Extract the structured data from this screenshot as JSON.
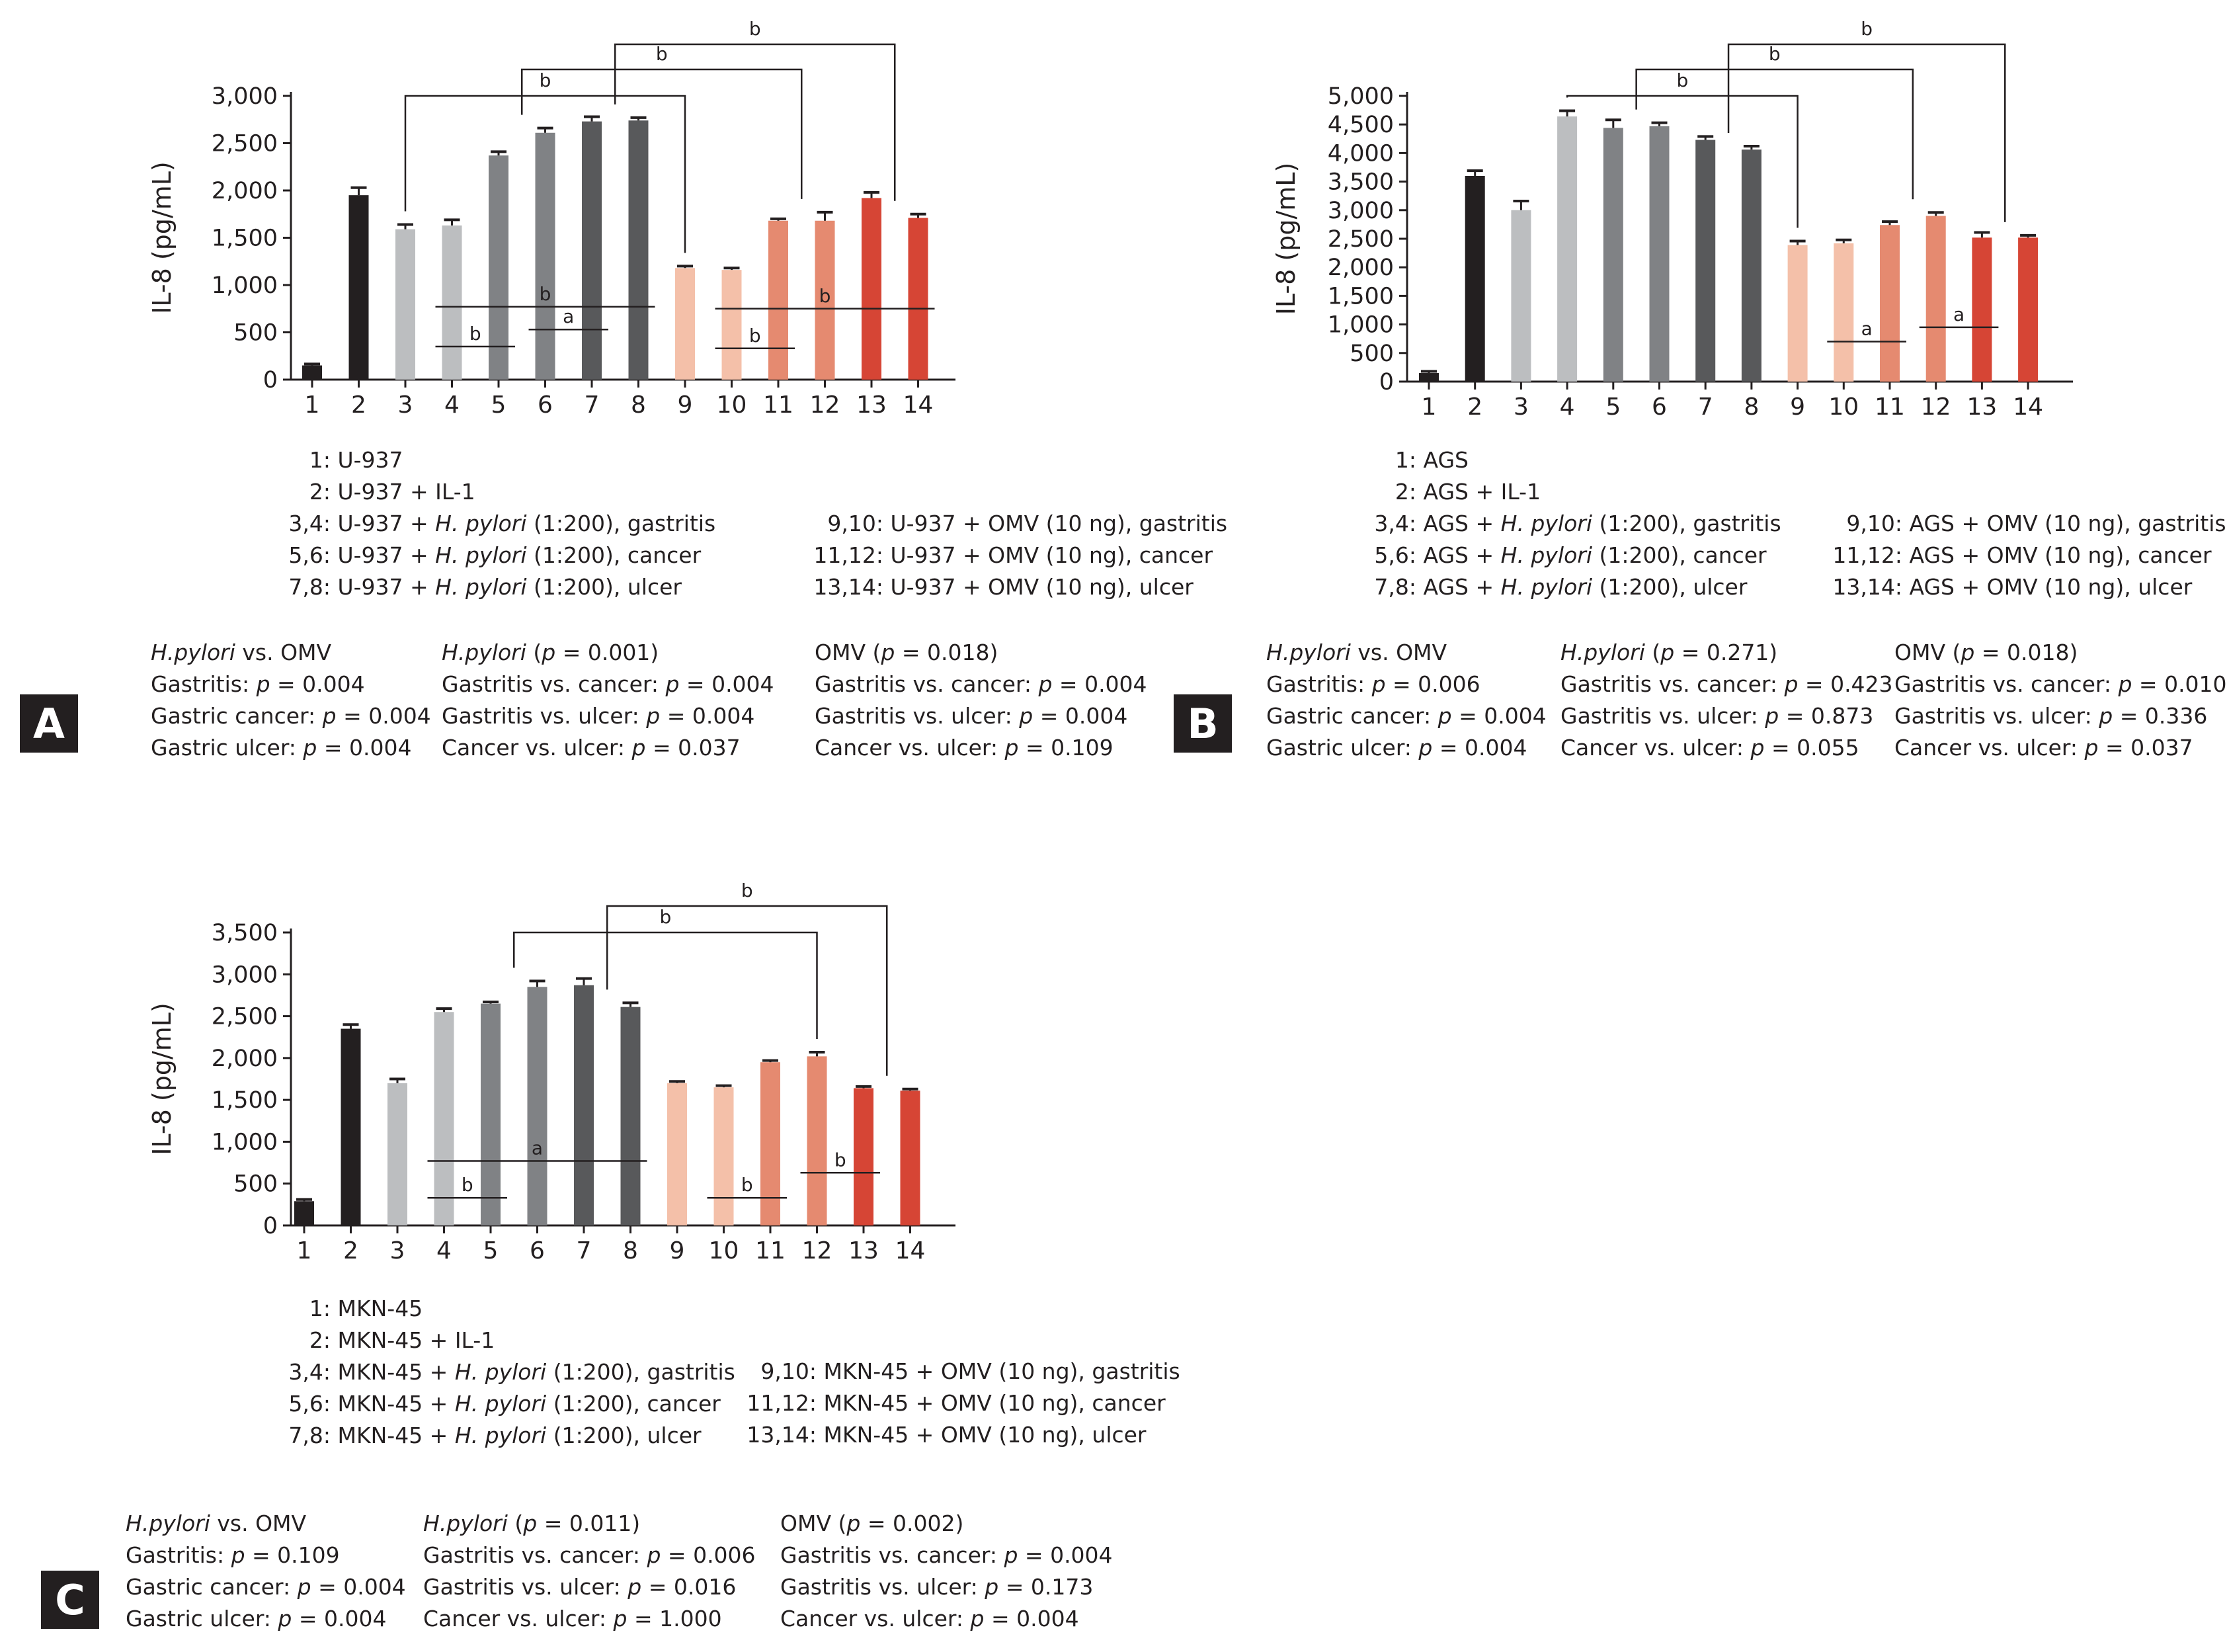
{
  "colors": {
    "black": "#231f20",
    "lightgray": "#bcbec0",
    "gray": "#808285",
    "darkgray": "#58595b",
    "peach": "#f4c0a9",
    "salmon": "#e58a70",
    "red": "#d64535"
  },
  "chart_data": [
    {
      "panel": "A",
      "type": "bar",
      "ylabel": "IL-8 (pg/mL)",
      "ylim": [
        0,
        3000
      ],
      "yticks": [
        "0",
        "500",
        "1,000",
        "1,500",
        "2,000",
        "2,500",
        "3,000"
      ],
      "categories": [
        "1",
        "2",
        "3",
        "4",
        "5",
        "6",
        "7",
        "8",
        "9",
        "10",
        "11",
        "12",
        "13",
        "14"
      ],
      "values": [
        150,
        1950,
        1590,
        1630,
        2370,
        2610,
        2730,
        2740,
        1180,
        1160,
        1680,
        1680,
        1920,
        1710
      ],
      "errors": [
        15,
        80,
        50,
        60,
        40,
        50,
        50,
        30,
        20,
        20,
        20,
        90,
        60,
        40
      ],
      "bar_colors": [
        "black",
        "black",
        "lightgray",
        "lightgray",
        "gray",
        "gray",
        "darkgray",
        "darkgray",
        "peach",
        "peach",
        "salmon",
        "salmon",
        "red",
        "red"
      ],
      "brackets": [
        {
          "from": "3",
          "to": "9",
          "label": "b"
        },
        {
          "from": "5.5",
          "to": "11.5",
          "label": "b"
        },
        {
          "from": "7.5",
          "to": "13.5",
          "label": "b"
        }
      ],
      "sig_lines": [
        {
          "from": "4",
          "to": "8",
          "y": 770,
          "label": "b"
        },
        {
          "from": "4",
          "to": "5",
          "y": 350,
          "label": "b"
        },
        {
          "from": "6",
          "to": "7",
          "y": 530,
          "label": "a"
        },
        {
          "from": "10",
          "to": "14",
          "y": 750,
          "label": "b"
        },
        {
          "from": "10",
          "to": "11",
          "y": 330,
          "label": "b"
        }
      ],
      "legend_left": [
        [
          {
            "t": "1: U-937"
          }
        ],
        [
          {
            "t": "2: U-937 + IL-1"
          }
        ],
        [
          {
            "t": "3,4: U-937 + "
          },
          {
            "t": "H. pylori",
            "i": true
          },
          {
            "t": " (1:200), gastritis"
          }
        ],
        [
          {
            "t": "5,6: U-937 + "
          },
          {
            "t": "H. pylori",
            "i": true
          },
          {
            "t": " (1:200), cancer"
          }
        ],
        [
          {
            "t": "7,8: U-937 + "
          },
          {
            "t": "H. pylori",
            "i": true
          },
          {
            "t": " (1:200), ulcer"
          }
        ]
      ],
      "legend_right": [
        [
          {
            "t": "9,10: U-937 + OMV (10 ng), gastritis"
          }
        ],
        [
          {
            "t": "11,12: U-937 + OMV (10 ng), cancer"
          }
        ],
        [
          {
            "t": "13,14: U-937 + OMV (10 ng), ulcer"
          }
        ]
      ],
      "stats": [
        [
          [
            {
              "t": "H.pylori",
              "i": true
            },
            {
              "t": " vs. OMV"
            }
          ],
          [
            {
              "t": "Gastritis: "
            },
            {
              "t": "p",
              "i": true
            },
            {
              "t": " = 0.004"
            }
          ],
          [
            {
              "t": "Gastric cancer: "
            },
            {
              "t": "p",
              "i": true
            },
            {
              "t": " = 0.004"
            }
          ],
          [
            {
              "t": "Gastric ulcer: "
            },
            {
              "t": "p",
              "i": true
            },
            {
              "t": " = 0.004"
            }
          ]
        ],
        [
          [
            {
              "t": "H.pylori",
              "i": true
            },
            {
              "t": " ("
            },
            {
              "t": "p",
              "i": true
            },
            {
              "t": " = 0.001)"
            }
          ],
          [
            {
              "t": "Gastritis vs. cancer: "
            },
            {
              "t": "p",
              "i": true
            },
            {
              "t": " = 0.004"
            }
          ],
          [
            {
              "t": "Gastritis vs. ulcer: "
            },
            {
              "t": "p",
              "i": true
            },
            {
              "t": " = 0.004"
            }
          ],
          [
            {
              "t": "Cancer vs. ulcer: "
            },
            {
              "t": "p",
              "i": true
            },
            {
              "t": " = 0.037"
            }
          ]
        ],
        [
          [
            {
              "t": "OMV ("
            },
            {
              "t": "p",
              "i": true
            },
            {
              "t": " = 0.018)"
            }
          ],
          [
            {
              "t": "Gastritis vs. cancer: "
            },
            {
              "t": "p",
              "i": true
            },
            {
              "t": " = 0.004"
            }
          ],
          [
            {
              "t": "Gastritis vs. ulcer: "
            },
            {
              "t": "p",
              "i": true
            },
            {
              "t": " = 0.004"
            }
          ],
          [
            {
              "t": "Cancer vs. ulcer: "
            },
            {
              "t": "p",
              "i": true
            },
            {
              "t": " = 0.109"
            }
          ]
        ]
      ]
    },
    {
      "panel": "B",
      "type": "bar",
      "ylabel": "IL-8 (pg/mL)",
      "ylim": [
        0,
        5000
      ],
      "yticks": [
        "0",
        "500",
        "1,000",
        "1,500",
        "2,000",
        "2,500",
        "3,000",
        "3,500",
        "4,000",
        "4,500",
        "5,000"
      ],
      "categories": [
        "1",
        "2",
        "3",
        "4",
        "5",
        "6",
        "7",
        "8",
        "9",
        "10",
        "11",
        "12",
        "13",
        "14"
      ],
      "values": [
        150,
        3600,
        3000,
        4640,
        4440,
        4470,
        4230,
        4060,
        2390,
        2420,
        2740,
        2900,
        2520,
        2520
      ],
      "errors": [
        30,
        90,
        160,
        100,
        140,
        60,
        60,
        60,
        70,
        60,
        60,
        60,
        90,
        40
      ],
      "bar_colors": [
        "black",
        "black",
        "lightgray",
        "lightgray",
        "gray",
        "gray",
        "darkgray",
        "darkgray",
        "peach",
        "peach",
        "salmon",
        "salmon",
        "red",
        "red"
      ],
      "brackets": [
        {
          "from": "4",
          "to": "9",
          "label": "b"
        },
        {
          "from": "5.5",
          "to": "11.5",
          "label": "b"
        },
        {
          "from": "7.5",
          "to": "13.5",
          "label": "b"
        }
      ],
      "sig_lines": [
        {
          "from": "10",
          "to": "11",
          "y": 700,
          "label": "a"
        },
        {
          "from": "12",
          "to": "13",
          "y": 950,
          "label": "a"
        }
      ],
      "legend_left": [
        [
          {
            "t": "1: AGS"
          }
        ],
        [
          {
            "t": "2: AGS + IL-1"
          }
        ],
        [
          {
            "t": "3,4: AGS + "
          },
          {
            "t": "H. pylori",
            "i": true
          },
          {
            "t": " (1:200), gastritis"
          }
        ],
        [
          {
            "t": "5,6: AGS + "
          },
          {
            "t": "H. pylori",
            "i": true
          },
          {
            "t": " (1:200), cancer"
          }
        ],
        [
          {
            "t": "7,8: AGS + "
          },
          {
            "t": "H. pylori",
            "i": true
          },
          {
            "t": " (1:200), ulcer"
          }
        ]
      ],
      "legend_right": [
        [
          {
            "t": "9,10: AGS + OMV (10 ng), gastritis"
          }
        ],
        [
          {
            "t": "11,12: AGS + OMV (10 ng), cancer"
          }
        ],
        [
          {
            "t": "13,14: AGS + OMV (10 ng), ulcer"
          }
        ]
      ],
      "stats": [
        [
          [
            {
              "t": "H.pylori",
              "i": true
            },
            {
              "t": " vs. OMV"
            }
          ],
          [
            {
              "t": "Gastritis: "
            },
            {
              "t": "p",
              "i": true
            },
            {
              "t": " = 0.006"
            }
          ],
          [
            {
              "t": "Gastric cancer: "
            },
            {
              "t": "p",
              "i": true
            },
            {
              "t": " = 0.004"
            }
          ],
          [
            {
              "t": "Gastric ulcer: "
            },
            {
              "t": "p",
              "i": true
            },
            {
              "t": " = 0.004"
            }
          ]
        ],
        [
          [
            {
              "t": "H.pylori",
              "i": true
            },
            {
              "t": " ("
            },
            {
              "t": "p",
              "i": true
            },
            {
              "t": " = 0.271)"
            }
          ],
          [
            {
              "t": "Gastritis vs. cancer: "
            },
            {
              "t": "p",
              "i": true
            },
            {
              "t": " = 0.423"
            }
          ],
          [
            {
              "t": "Gastritis vs. ulcer: "
            },
            {
              "t": "p",
              "i": true
            },
            {
              "t": " = 0.873"
            }
          ],
          [
            {
              "t": "Cancer vs. ulcer: "
            },
            {
              "t": "p",
              "i": true
            },
            {
              "t": " = 0.055"
            }
          ]
        ],
        [
          [
            {
              "t": "OMV ("
            },
            {
              "t": "p",
              "i": true
            },
            {
              "t": " = 0.018)"
            }
          ],
          [
            {
              "t": "Gastritis vs. cancer: "
            },
            {
              "t": "p",
              "i": true
            },
            {
              "t": " = 0.010"
            }
          ],
          [
            {
              "t": "Gastritis vs. ulcer: "
            },
            {
              "t": "p",
              "i": true
            },
            {
              "t": " = 0.336"
            }
          ],
          [
            {
              "t": "Cancer vs. ulcer: "
            },
            {
              "t": "p",
              "i": true
            },
            {
              "t": " = 0.037"
            }
          ]
        ]
      ]
    },
    {
      "panel": "C",
      "type": "bar",
      "ylabel": "IL-8 (pg/mL)",
      "ylim": [
        0,
        3500
      ],
      "yticks": [
        "0",
        "500",
        "1,000",
        "1,500",
        "2,000",
        "2,500",
        "3,000",
        "3,500"
      ],
      "categories": [
        "1",
        "2",
        "3",
        "4",
        "5",
        "6",
        "7",
        "8",
        "9",
        "10",
        "11",
        "12",
        "13",
        "14"
      ],
      "values": [
        290,
        2350,
        1700,
        2550,
        2650,
        2850,
        2870,
        2610,
        1700,
        1650,
        1950,
        2020,
        1640,
        1610
      ],
      "errors": [
        20,
        50,
        50,
        40,
        20,
        70,
        80,
        50,
        20,
        20,
        20,
        50,
        20,
        20
      ],
      "bar_colors": [
        "black",
        "black",
        "lightgray",
        "lightgray",
        "gray",
        "gray",
        "darkgray",
        "darkgray",
        "peach",
        "peach",
        "salmon",
        "salmon",
        "red",
        "red"
      ],
      "brackets": [
        {
          "from": "5.5",
          "to": "12",
          "label": "b"
        },
        {
          "from": "7.5",
          "to": "13.5",
          "label": "b"
        }
      ],
      "sig_lines": [
        {
          "from": "4",
          "to": "8",
          "y": 770,
          "label": "a"
        },
        {
          "from": "4",
          "to": "5",
          "y": 330,
          "label": "b"
        },
        {
          "from": "10",
          "to": "11",
          "y": 330,
          "label": "b"
        },
        {
          "from": "12",
          "to": "13",
          "y": 630,
          "label": "b"
        }
      ],
      "legend_left": [
        [
          {
            "t": "1: MKN-45"
          }
        ],
        [
          {
            "t": "2: MKN-45 + IL-1"
          }
        ],
        [
          {
            "t": "3,4: MKN-45 + "
          },
          {
            "t": "H. pylori",
            "i": true
          },
          {
            "t": " (1:200), gastritis"
          }
        ],
        [
          {
            "t": "5,6: MKN-45 + "
          },
          {
            "t": "H. pylori",
            "i": true
          },
          {
            "t": " (1:200), cancer"
          }
        ],
        [
          {
            "t": "7,8: MKN-45 + "
          },
          {
            "t": "H. pylori",
            "i": true
          },
          {
            "t": " (1:200), ulcer"
          }
        ]
      ],
      "legend_right": [
        [
          {
            "t": "9,10: MKN-45 + OMV (10 ng), gastritis"
          }
        ],
        [
          {
            "t": "11,12: MKN-45 + OMV (10 ng), cancer"
          }
        ],
        [
          {
            "t": "13,14: MKN-45 + OMV (10 ng), ulcer"
          }
        ]
      ],
      "stats": [
        [
          [
            {
              "t": "H.pylori",
              "i": true
            },
            {
              "t": " vs. OMV"
            }
          ],
          [
            {
              "t": "Gastritis: "
            },
            {
              "t": "p",
              "i": true
            },
            {
              "t": " = 0.109"
            }
          ],
          [
            {
              "t": "Gastric cancer: "
            },
            {
              "t": "p",
              "i": true
            },
            {
              "t": " = 0.004"
            }
          ],
          [
            {
              "t": "Gastric ulcer: "
            },
            {
              "t": "p",
              "i": true
            },
            {
              "t": " = 0.004"
            }
          ]
        ],
        [
          [
            {
              "t": "H.pylori",
              "i": true
            },
            {
              "t": " ("
            },
            {
              "t": "p",
              "i": true
            },
            {
              "t": " = 0.011)"
            }
          ],
          [
            {
              "t": "Gastritis vs. cancer: "
            },
            {
              "t": "p",
              "i": true
            },
            {
              "t": " = 0.006"
            }
          ],
          [
            {
              "t": "Gastritis vs. ulcer: "
            },
            {
              "t": "p",
              "i": true
            },
            {
              "t": " = 0.016"
            }
          ],
          [
            {
              "t": "Cancer vs. ulcer: "
            },
            {
              "t": "p",
              "i": true
            },
            {
              "t": " = 1.000"
            }
          ]
        ],
        [
          [
            {
              "t": "OMV ("
            },
            {
              "t": "p",
              "i": true
            },
            {
              "t": " = 0.002)"
            }
          ],
          [
            {
              "t": "Gastritis vs. cancer: "
            },
            {
              "t": "p",
              "i": true
            },
            {
              "t": " = 0.004"
            }
          ],
          [
            {
              "t": "Gastritis vs. ulcer: "
            },
            {
              "t": "p",
              "i": true
            },
            {
              "t": " = 0.173"
            }
          ],
          [
            {
              "t": "Cancer vs. ulcer: "
            },
            {
              "t": "p",
              "i": true
            },
            {
              "t": " = 0.004"
            }
          ]
        ]
      ]
    }
  ]
}
